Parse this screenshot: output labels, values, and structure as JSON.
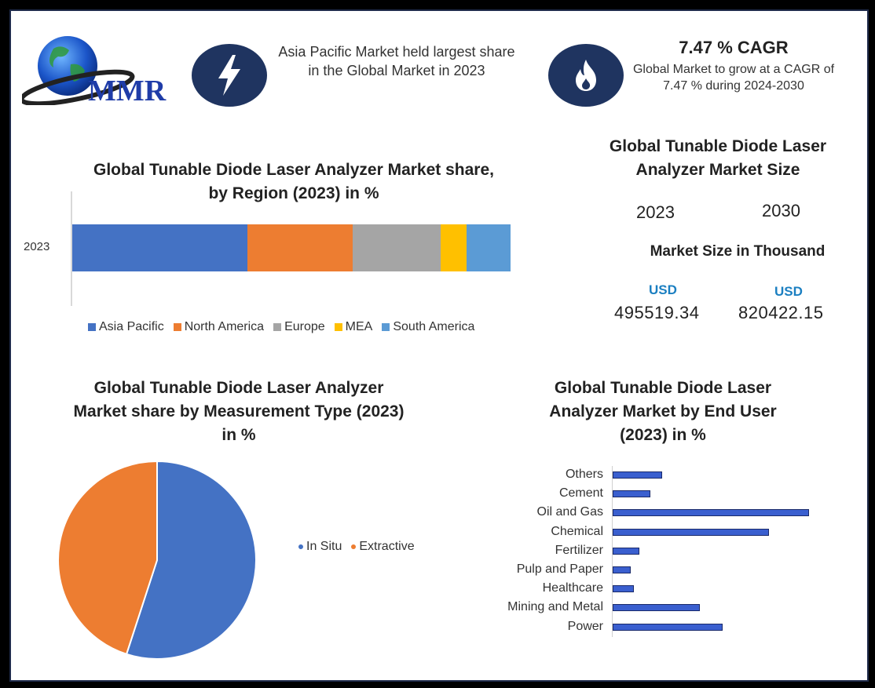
{
  "brand": {
    "logo_text": "MMR"
  },
  "header": {
    "region_note": "Asia Pacific Market held largest share in the Global Market in 2023",
    "cagr_title": "7.47 % CAGR",
    "cagr_text": "Global Market to grow at a CAGR of 7.47 % during 2024-2030",
    "icons": [
      "lightning-bolt-icon",
      "flame-icon"
    ],
    "icon_circle_color": "#1f3460"
  },
  "market_size": {
    "title": "Global Tunable Diode Laser Analyzer Market Size",
    "year_a": "2023",
    "year_b": "2030",
    "subtitle": "Market Size in Thousand",
    "currency_a": "USD",
    "currency_b": "USD",
    "value_a": "495519.34",
    "value_b": "820422.15"
  },
  "chart_data": [
    {
      "type": "bar",
      "orientation": "horizontal-stacked",
      "title": "Global Tunable Diode Laser Analyzer Market share, by Region (2023) in %",
      "categories": [
        "2023"
      ],
      "series": [
        {
          "name": "Asia Pacific",
          "values": [
            40
          ],
          "color": "#4472c4"
        },
        {
          "name": "North America",
          "values": [
            24
          ],
          "color": "#ed7d31"
        },
        {
          "name": "Europe",
          "values": [
            20
          ],
          "color": "#a5a5a5"
        },
        {
          "name": "MEA",
          "values": [
            6
          ],
          "color": "#ffc000"
        },
        {
          "name": "South America",
          "values": [
            10
          ],
          "color": "#5b9bd5"
        }
      ],
      "legend": "bottom"
    },
    {
      "type": "pie",
      "title": "Global Tunable Diode Laser Analyzer Market share by Measurement Type (2023) in %",
      "labels": [
        "In Situ",
        "Extractive"
      ],
      "values": [
        55,
        45
      ],
      "colors": [
        "#4472c4",
        "#ed7d31"
      ],
      "legend": "right"
    },
    {
      "type": "bar",
      "orientation": "horizontal",
      "title": "Global Tunable Diode Laser Analyzer Market by End User (2023) in %",
      "categories": [
        "Others",
        "Cement",
        "Oil and Gas",
        "Chemical",
        "Fertilizer",
        "Pulp and Paper",
        "Healthcare",
        "Mining and Metal",
        "Power"
      ],
      "values": [
        5.5,
        4.2,
        22.0,
        17.5,
        3.0,
        2.0,
        2.4,
        9.8,
        12.3
      ],
      "color": "#3a5fcf"
    }
  ]
}
